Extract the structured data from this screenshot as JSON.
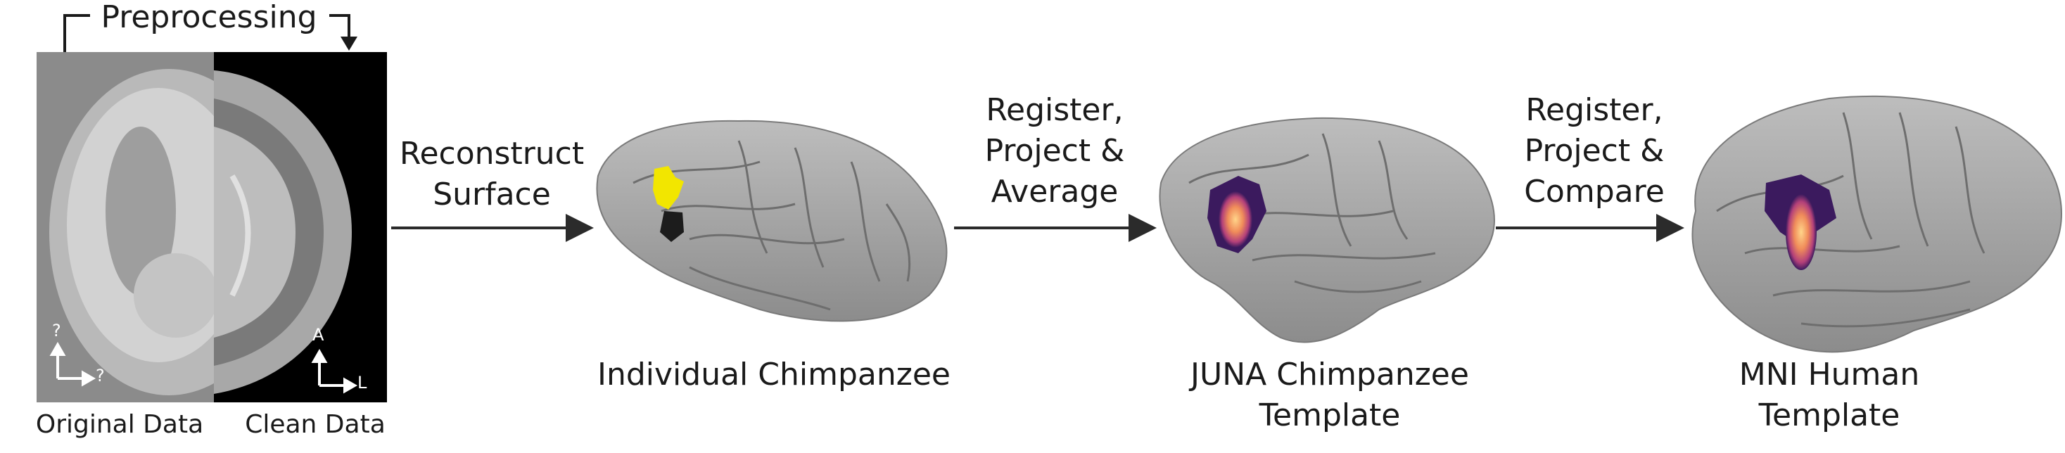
{
  "preprocessing_label": "Preprocessing",
  "original_data_label": "Original Data",
  "clean_data_label": "Clean Data",
  "orientation_original": [
    "?",
    "?"
  ],
  "orientation_clean": [
    "A",
    "L"
  ],
  "steps": [
    {
      "lines": [
        "Reconstruct",
        "Surface"
      ]
    },
    {
      "lines": [
        "Register,",
        "Project &",
        "Average"
      ]
    },
    {
      "lines": [
        "Register,",
        "Project &",
        "Compare"
      ]
    }
  ],
  "brains": [
    {
      "lines": [
        "Individual Chimpanzee"
      ]
    },
    {
      "lines": [
        "JUNA Chimpanzee",
        "Template"
      ]
    },
    {
      "lines": [
        "MNI Human",
        "Template"
      ]
    }
  ],
  "colors": {
    "arrow": "#2b2b2b",
    "brain_fill": "#a9a9a9",
    "sulci": "#6e6e6e",
    "highlight_yellow": "#f2e600",
    "heat_purple": "#3b1a5e",
    "heat_orange": "#f4a35f"
  }
}
